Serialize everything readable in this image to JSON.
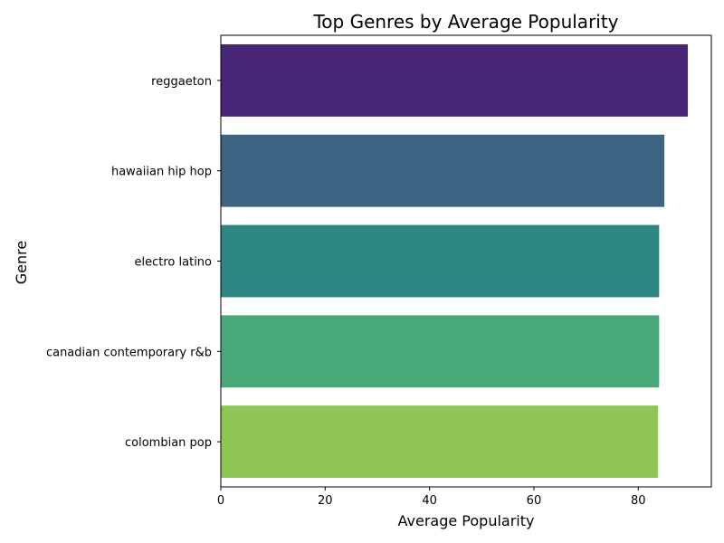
{
  "chart_data": {
    "type": "bar",
    "orientation": "horizontal",
    "title": "Top Genres by Average Popularity",
    "xlabel": "Average Popularity",
    "ylabel": "Genre",
    "categories": [
      "reggaeton",
      "hawaiian hip hop",
      "electro latino",
      "canadian contemporary r&b",
      "colombian pop"
    ],
    "values": [
      89.5,
      85,
      84,
      84,
      83.8
    ],
    "colors": [
      "#482677",
      "#3E6485",
      "#2D8682",
      "#48A878",
      "#8FC555"
    ],
    "xlim": [
      0,
      94
    ],
    "xticks": [
      0,
      20,
      40,
      60,
      80
    ],
    "grid": false,
    "legend": "none"
  }
}
